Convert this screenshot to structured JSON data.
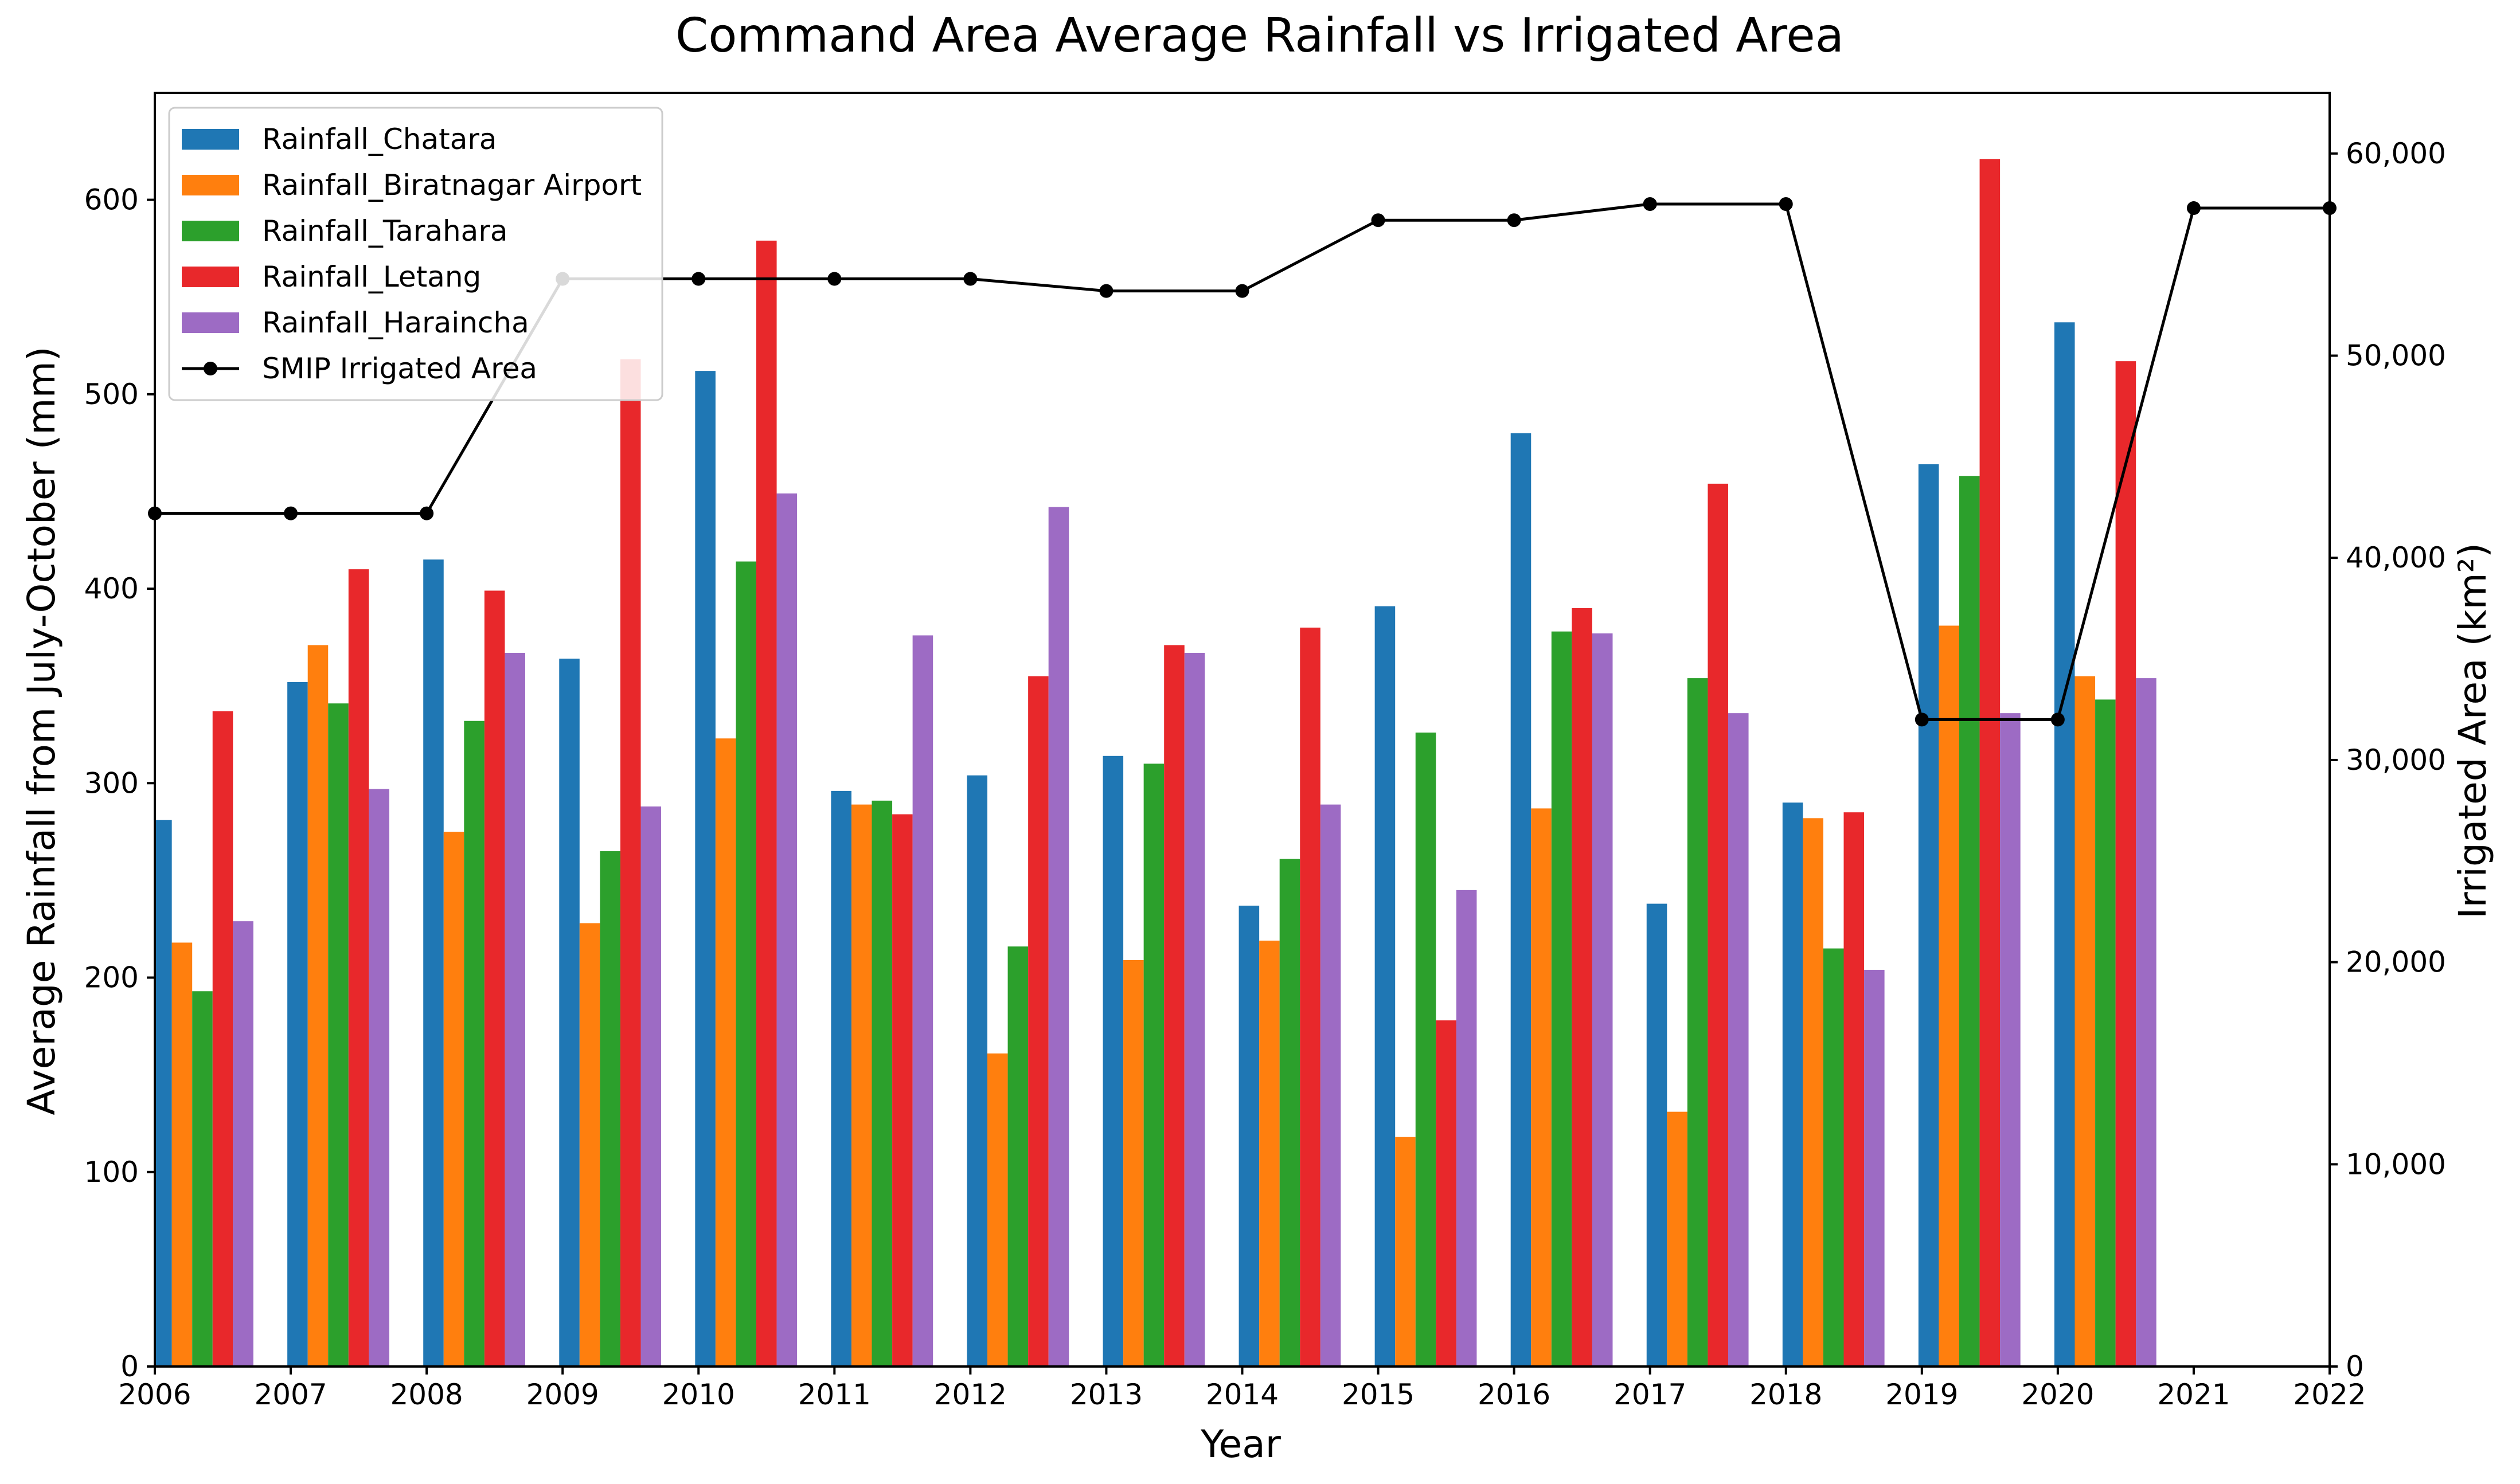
{
  "chart_data": {
    "type": "bar",
    "title": "Command Area Average Rainfall vs Irrigated Area",
    "xlabel": "Year",
    "ylabel": "Average Rainfall from July-October (mm)",
    "y2label": "Irrigated Area (km²)",
    "xlim": [
      2006,
      2022
    ],
    "ylim": [
      0,
      655
    ],
    "y2lim": [
      0,
      63000
    ],
    "x_ticks": [
      "2006",
      "2007",
      "2008",
      "2009",
      "2010",
      "2011",
      "2012",
      "2013",
      "2014",
      "2015",
      "2016",
      "2017",
      "2018",
      "2019",
      "2020",
      "2021",
      "2022"
    ],
    "y_ticks": [
      "0",
      "100",
      "200",
      "300",
      "400",
      "500",
      "600"
    ],
    "y2_ticks": [
      "0",
      "10,000",
      "20,000",
      "30,000",
      "40,000",
      "50,000",
      "60,000"
    ],
    "grid": false,
    "legend_position": "top-left",
    "categories": [
      2006,
      2007,
      2008,
      2009,
      2010,
      2011,
      2012,
      2013,
      2014,
      2015,
      2016,
      2017,
      2018,
      2019,
      2020
    ],
    "series": [
      {
        "name": "Rainfall_Chatara",
        "color": "#1f77b4",
        "values": [
          281,
          352,
          415,
          364,
          512,
          296,
          304,
          314,
          237,
          391,
          480,
          238,
          290,
          464,
          537
        ]
      },
      {
        "name": "Rainfall_Biratnagar Airport",
        "color": "#ff7f0e",
        "values": [
          218,
          371,
          275,
          228,
          323,
          289,
          161,
          209,
          219,
          118,
          287,
          131,
          282,
          381,
          355
        ]
      },
      {
        "name": "Rainfall_Tarahara",
        "color": "#2ca02c",
        "values": [
          193,
          341,
          332,
          265,
          414,
          291,
          216,
          310,
          261,
          326,
          378,
          354,
          215,
          458,
          343
        ]
      },
      {
        "name": "Rainfall_Letang",
        "color": "#e8282b",
        "values": [
          337,
          410,
          399,
          518,
          579,
          284,
          355,
          371,
          380,
          178,
          390,
          454,
          285,
          621,
          517
        ]
      },
      {
        "name": "Rainfall_Haraincha",
        "color": "#9d6bc4",
        "values": [
          229,
          297,
          367,
          288,
          449,
          376,
          442,
          367,
          289,
          245,
          377,
          336,
          204,
          336,
          354
        ]
      }
    ],
    "line_series": {
      "name": "SMIP Irrigated Area",
      "color": "#000000",
      "axis": "right",
      "x": [
        2006,
        2007,
        2008,
        2009,
        2010,
        2011,
        2012,
        2013,
        2014,
        2015,
        2016,
        2017,
        2018,
        2019,
        2020,
        2021,
        2022
      ],
      "values": [
        42200,
        42200,
        42200,
        53800,
        53800,
        53800,
        53800,
        53200,
        53200,
        56700,
        56700,
        57500,
        57500,
        32000,
        32000,
        57300,
        57300
      ]
    }
  }
}
